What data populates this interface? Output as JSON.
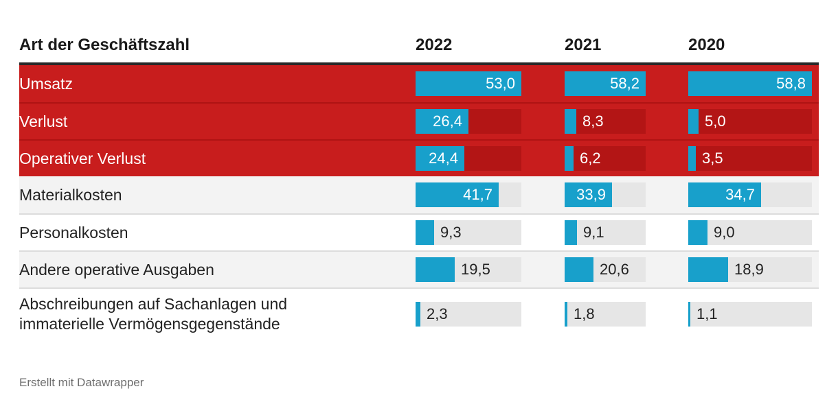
{
  "chart_data": {
    "type": "table",
    "title": "Art der Geschäftszahl",
    "columns": [
      "Art der Geschäftszahl",
      "2022",
      "2021",
      "2020"
    ],
    "bar_scaling": "per-column-max",
    "value_format": "one decimal, comma separator",
    "rows": [
      {
        "label": "Umsatz",
        "highlighted": true,
        "values": [
          53.0,
          58.2,
          58.8
        ],
        "labels": [
          "53,0",
          "58,2",
          "58,8"
        ]
      },
      {
        "label": "Verlust",
        "highlighted": true,
        "values": [
          26.4,
          8.3,
          5.0
        ],
        "labels": [
          "26,4",
          "8,3",
          "5,0"
        ]
      },
      {
        "label": "Operativer Verlust",
        "highlighted": true,
        "values": [
          24.4,
          6.2,
          3.5
        ],
        "labels": [
          "24,4",
          "6,2",
          "3,5"
        ]
      },
      {
        "label": "Materialkosten",
        "highlighted": false,
        "values": [
          41.7,
          33.9,
          34.7
        ],
        "labels": [
          "41,7",
          "33,9",
          "34,7"
        ]
      },
      {
        "label": "Personalkosten",
        "highlighted": false,
        "values": [
          9.3,
          9.1,
          9.0
        ],
        "labels": [
          "9,3",
          "9,1",
          "9,0"
        ]
      },
      {
        "label": "Andere operative Ausgaben",
        "highlighted": false,
        "values": [
          19.5,
          20.6,
          18.9
        ],
        "labels": [
          "19,5",
          "20,6",
          "18,9"
        ]
      },
      {
        "label": "Abschreibungen auf Sachanlagen und immaterielle Vermögensgegenstände",
        "highlighted": false,
        "values": [
          2.3,
          1.8,
          1.1
        ],
        "labels": [
          "2,3",
          "1,8",
          "1,1"
        ]
      }
    ],
    "column_maxima": [
      53.0,
      58.2,
      58.8
    ]
  },
  "colors": {
    "highlight_row_bg": "#c81d1d",
    "highlight_track": "#b31515",
    "bar_fill": "#18a0cb",
    "track_gray": "#e6e6e6",
    "alt_row_bg": "#f3f3f3",
    "header_rule": "#282828",
    "text_dark": "#222222",
    "text_light": "#ffffff"
  },
  "footer": {
    "attribution": "Erstellt mit Datawrapper"
  }
}
